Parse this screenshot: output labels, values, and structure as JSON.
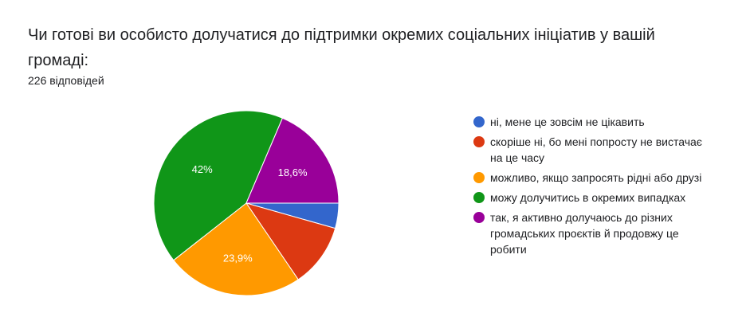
{
  "question": {
    "title": "Чи готові ви особисто долучатися до підтримки окремих соціальних ініціатив у вашій громаді:",
    "response_count": "226 відповідей"
  },
  "chart_data": {
    "type": "pie",
    "title": "Чи готові ви особисто долучатися до підтримки окремих соціальних ініціатив у вашій громаді:",
    "total_responses": 226,
    "start": "3 o'clock, clockwise",
    "slices": [
      {
        "label": "ні, мене це зовсім не цікавить",
        "value": 4.4,
        "display": "",
        "color": "#3366cc"
      },
      {
        "label": "скоріше ні, бо мені попросту не вистачає на це часу",
        "value": 11.1,
        "display": "",
        "color": "#dc3912"
      },
      {
        "label": "можливо, якщо запросять рідні або друзі",
        "value": 23.9,
        "display": "23,9%",
        "color": "#ff9900"
      },
      {
        "label": "можу долучитись в окремих випадках",
        "value": 42.0,
        "display": "42%",
        "color": "#109618"
      },
      {
        "label": "так, я активно долучаюсь до різних громадських проєктів й продовжу це робити",
        "value": 18.6,
        "display": "18,6%",
        "color": "#990099"
      }
    ]
  }
}
